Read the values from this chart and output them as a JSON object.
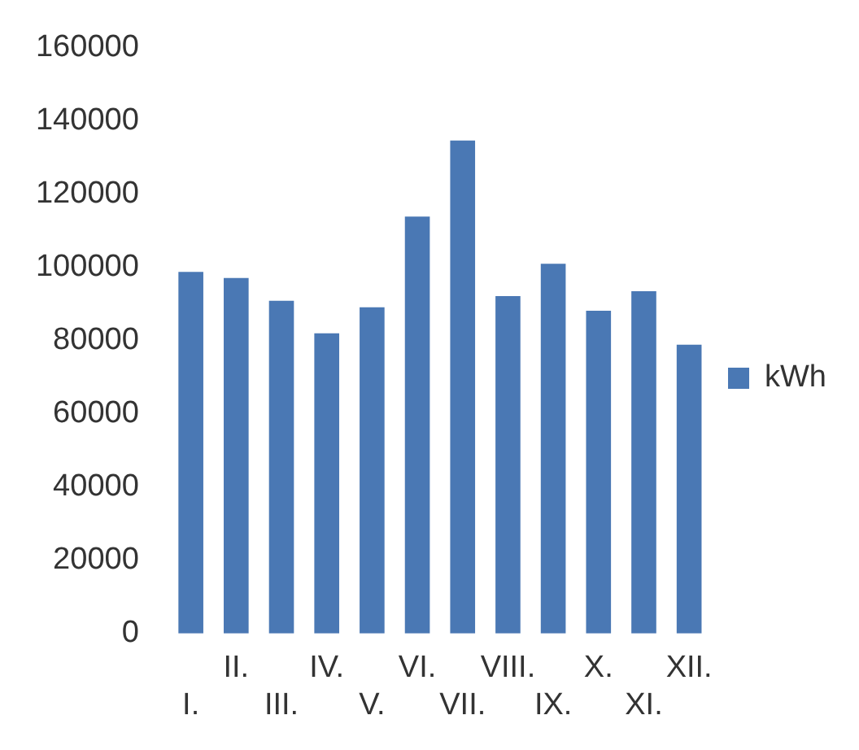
{
  "chart_data": {
    "type": "bar",
    "categories": [
      "I.",
      "II.",
      "III.",
      "IV.",
      "V.",
      "VI.",
      "VII.",
      "VIII.",
      "IX.",
      "X.",
      "XI.",
      "XII."
    ],
    "series": [
      {
        "name": "kWh",
        "color": "#4a78b4",
        "values": [
          98800,
          97100,
          90900,
          82000,
          89100,
          113900,
          134700,
          92200,
          101000,
          88200,
          93500,
          78900
        ]
      }
    ],
    "ylim": [
      0,
      160000
    ],
    "yticks": [
      0,
      20000,
      40000,
      60000,
      80000,
      100000,
      120000,
      140000,
      160000
    ],
    "grid": false,
    "legend": "right"
  }
}
